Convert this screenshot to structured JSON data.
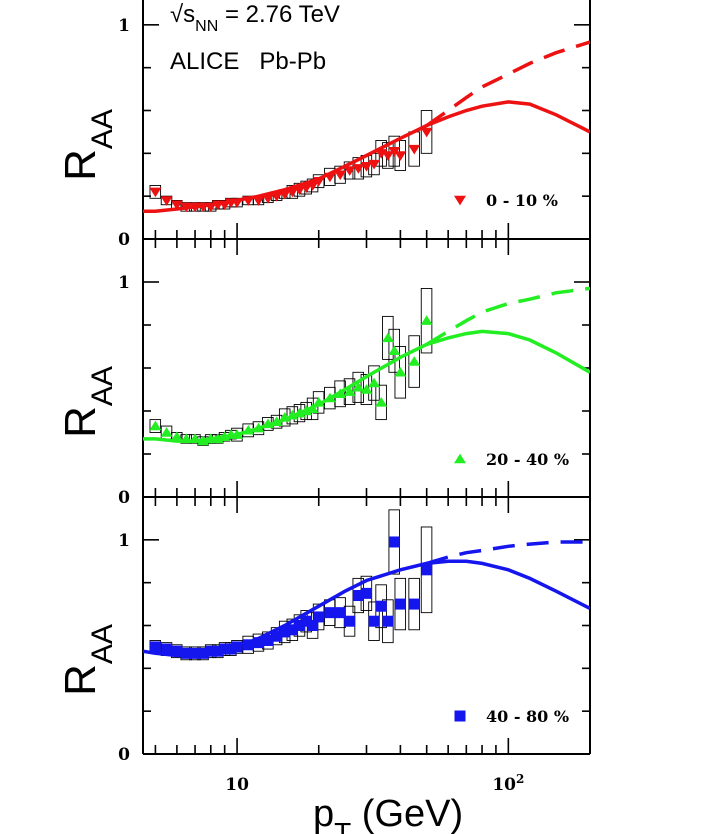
{
  "chart_data": [
    {
      "type": "scatter",
      "panel": "top",
      "annotation_energy": "√s",
      "annotation_energy_sub": "NN",
      "annotation_energy_value": " = 2.76 TeV",
      "annotation_experiment": "ALICE   Pb-Pb",
      "ylabel": "R",
      "ylabel_sub": "AA",
      "xscale": "log",
      "xlim": [
        4.5,
        200
      ],
      "ylim": [
        0,
        1.2
      ],
      "yticks": [
        {
          "value": 0,
          "label": "0"
        },
        {
          "value": 1,
          "label": "1"
        }
      ],
      "color": "#ee1111",
      "series": [
        {
          "name": "0 - 10 %",
          "marker": "triangle-down",
          "x": [
            5.0,
            5.5,
            6.0,
            6.5,
            7.0,
            7.5,
            8.0,
            8.5,
            9.0,
            9.5,
            10.0,
            11,
            12,
            13,
            14,
            15,
            16,
            17,
            18,
            19,
            20,
            22,
            24,
            26,
            28,
            30,
            32,
            34,
            36,
            38,
            40,
            45,
            50
          ],
          "y": [
            0.22,
            0.18,
            0.16,
            0.15,
            0.15,
            0.15,
            0.15,
            0.16,
            0.16,
            0.17,
            0.17,
            0.18,
            0.18,
            0.19,
            0.2,
            0.21,
            0.22,
            0.23,
            0.24,
            0.25,
            0.27,
            0.29,
            0.3,
            0.32,
            0.33,
            0.34,
            0.35,
            0.4,
            0.39,
            0.41,
            0.39,
            0.42,
            0.5
          ],
          "sys_err": [
            0.03,
            0.02,
            0.02,
            0.02,
            0.02,
            0.02,
            0.02,
            0.02,
            0.02,
            0.02,
            0.02,
            0.02,
            0.02,
            0.02,
            0.02,
            0.02,
            0.03,
            0.03,
            0.03,
            0.03,
            0.03,
            0.04,
            0.04,
            0.04,
            0.05,
            0.05,
            0.05,
            0.06,
            0.06,
            0.07,
            0.07,
            0.08,
            0.1
          ]
        }
      ],
      "curves": [
        {
          "style": "solid",
          "x": [
            4.5,
            5,
            6,
            7,
            8,
            10,
            12,
            15,
            20,
            25,
            30,
            40,
            50,
            60,
            70,
            80,
            100,
            120,
            150,
            200
          ],
          "y": [
            0.13,
            0.13,
            0.14,
            0.15,
            0.16,
            0.18,
            0.2,
            0.23,
            0.28,
            0.34,
            0.39,
            0.47,
            0.53,
            0.57,
            0.6,
            0.62,
            0.64,
            0.63,
            0.58,
            0.5
          ]
        },
        {
          "style": "dashed",
          "x": [
            50,
            60,
            70,
            80,
            100,
            120,
            150,
            200
          ],
          "y": [
            0.53,
            0.6,
            0.66,
            0.71,
            0.77,
            0.82,
            0.87,
            0.92
          ]
        }
      ]
    },
    {
      "type": "scatter",
      "panel": "middle",
      "ylabel": "R",
      "ylabel_sub": "AA",
      "xscale": "log",
      "xlim": [
        4.5,
        200
      ],
      "ylim": [
        0,
        1.2
      ],
      "yticks": [
        {
          "value": 0,
          "label": "0"
        },
        {
          "value": 1,
          "label": "1"
        }
      ],
      "color": "#22ee22",
      "series": [
        {
          "name": "20 - 40 %",
          "marker": "triangle-up",
          "x": [
            5.0,
            5.5,
            6.0,
            6.5,
            7.0,
            7.5,
            8.0,
            8.5,
            9.0,
            9.5,
            10.0,
            11,
            12,
            13,
            14,
            15,
            16,
            17,
            18,
            19,
            20,
            22,
            24,
            26,
            28,
            30,
            32,
            34,
            36,
            38,
            40,
            45,
            50
          ],
          "y": [
            0.33,
            0.3,
            0.28,
            0.27,
            0.27,
            0.26,
            0.27,
            0.27,
            0.28,
            0.29,
            0.29,
            0.31,
            0.32,
            0.34,
            0.35,
            0.37,
            0.38,
            0.39,
            0.4,
            0.41,
            0.44,
            0.46,
            0.48,
            0.49,
            0.51,
            0.5,
            0.53,
            0.44,
            0.74,
            0.68,
            0.58,
            0.63,
            0.82
          ],
          "sys_err": [
            0.03,
            0.03,
            0.02,
            0.02,
            0.02,
            0.02,
            0.02,
            0.02,
            0.02,
            0.02,
            0.03,
            0.03,
            0.03,
            0.03,
            0.03,
            0.04,
            0.04,
            0.04,
            0.04,
            0.05,
            0.05,
            0.05,
            0.06,
            0.06,
            0.07,
            0.07,
            0.08,
            0.08,
            0.1,
            0.1,
            0.12,
            0.12,
            0.15
          ]
        }
      ],
      "curves": [
        {
          "style": "solid",
          "x": [
            4.5,
            5,
            6,
            7,
            8,
            10,
            12,
            15,
            20,
            25,
            30,
            40,
            50,
            60,
            70,
            80,
            100,
            120,
            150,
            200
          ],
          "y": [
            0.27,
            0.27,
            0.26,
            0.26,
            0.27,
            0.29,
            0.32,
            0.36,
            0.43,
            0.5,
            0.56,
            0.65,
            0.71,
            0.74,
            0.76,
            0.77,
            0.76,
            0.73,
            0.67,
            0.58
          ]
        },
        {
          "style": "dashed",
          "x": [
            50,
            60,
            70,
            80,
            100,
            120,
            150,
            200
          ],
          "y": [
            0.71,
            0.77,
            0.82,
            0.86,
            0.9,
            0.92,
            0.95,
            0.97
          ]
        }
      ]
    },
    {
      "type": "scatter",
      "panel": "bottom",
      "ylabel": "R",
      "ylabel_sub": "AA",
      "xlabel": "p",
      "xlabel_sub": "T",
      "xlabel_unit": " (GeV)",
      "xscale": "log",
      "xlim": [
        4.5,
        200
      ],
      "ylim": [
        0,
        1.2
      ],
      "yticks": [
        {
          "value": 0,
          "label": "0"
        },
        {
          "value": 1,
          "label": "1"
        }
      ],
      "xticks": [
        {
          "value": 10,
          "label": "10"
        },
        {
          "value": 100,
          "label": "10",
          "sup": "2"
        }
      ],
      "color": "#1515ee",
      "series": [
        {
          "name": "40 - 80 %",
          "marker": "square",
          "x": [
            5.0,
            5.5,
            6.0,
            6.5,
            7.0,
            7.5,
            8.0,
            8.5,
            9.0,
            9.5,
            10.0,
            11,
            12,
            13,
            14,
            15,
            16,
            17,
            18,
            19,
            20,
            22,
            24,
            26,
            28,
            30,
            32,
            34,
            36,
            38,
            40,
            45,
            50
          ],
          "y": [
            0.5,
            0.49,
            0.48,
            0.47,
            0.47,
            0.47,
            0.48,
            0.48,
            0.49,
            0.49,
            0.5,
            0.51,
            0.52,
            0.53,
            0.55,
            0.57,
            0.58,
            0.6,
            0.62,
            0.6,
            0.64,
            0.66,
            0.66,
            0.62,
            0.74,
            0.75,
            0.62,
            0.69,
            0.62,
            0.99,
            0.7,
            0.7,
            0.86
          ],
          "sys_err": [
            0.03,
            0.03,
            0.03,
            0.03,
            0.03,
            0.03,
            0.03,
            0.03,
            0.03,
            0.03,
            0.03,
            0.04,
            0.04,
            0.04,
            0.04,
            0.05,
            0.05,
            0.05,
            0.05,
            0.06,
            0.06,
            0.06,
            0.07,
            0.07,
            0.08,
            0.08,
            0.09,
            0.1,
            0.1,
            0.15,
            0.12,
            0.12,
            0.2
          ]
        }
      ],
      "curves": [
        {
          "style": "solid",
          "x": [
            4.5,
            5,
            6,
            7,
            8,
            10,
            12,
            15,
            20,
            25,
            30,
            40,
            50,
            60,
            70,
            80,
            100,
            120,
            150,
            200
          ],
          "y": [
            0.48,
            0.47,
            0.46,
            0.46,
            0.47,
            0.5,
            0.54,
            0.6,
            0.69,
            0.76,
            0.81,
            0.86,
            0.89,
            0.9,
            0.9,
            0.89,
            0.86,
            0.82,
            0.76,
            0.68
          ]
        },
        {
          "style": "dashed",
          "x": [
            50,
            60,
            70,
            80,
            100,
            120,
            150,
            200
          ],
          "y": [
            0.89,
            0.92,
            0.94,
            0.95,
            0.97,
            0.98,
            0.99,
            0.99
          ]
        }
      ]
    }
  ]
}
